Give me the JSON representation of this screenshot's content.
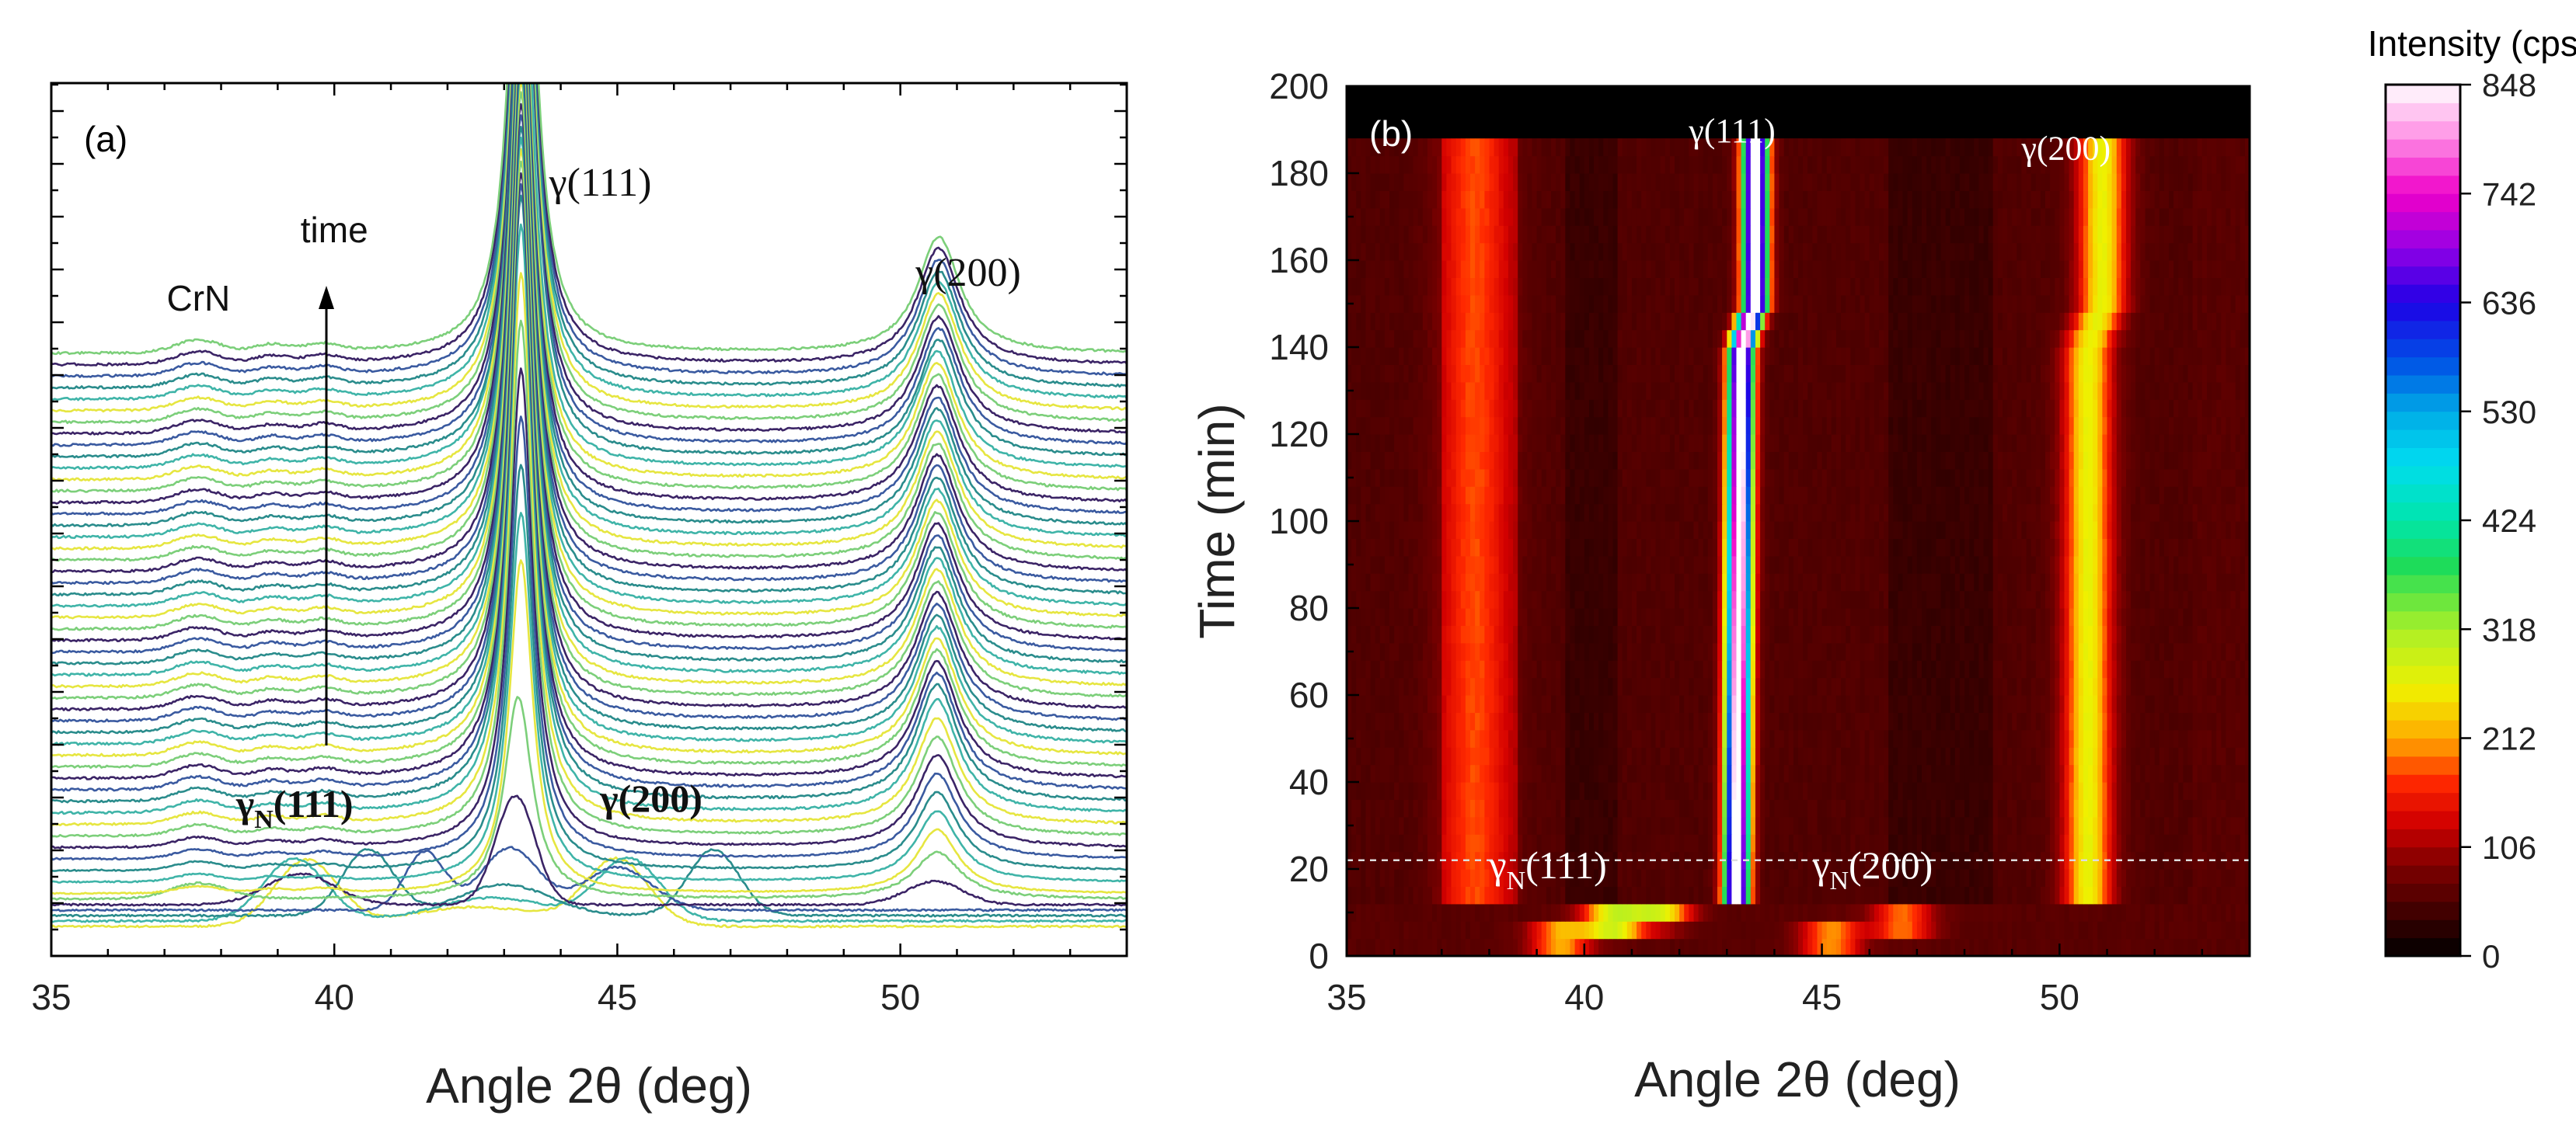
{
  "chart_data": [
    {
      "type": "line",
      "panel_label": "(a)",
      "xlabel": "Angle 2θ (deg)",
      "ylabel": "",
      "xlim": [
        35,
        54
      ],
      "xticks": [
        35,
        40,
        45,
        50
      ],
      "y_tick_labels": "none",
      "grid": false,
      "series_count": 54,
      "stack_offset_note_visible": false,
      "color_cycle": [
        "#e6e640",
        "#3fb4a8",
        "#2a8c8c",
        "#3a5aa0",
        "#3b2466",
        "#7ccf7a"
      ],
      "annotations": [
        {
          "text": "γ(111)",
          "x": 44.7,
          "label": "gamma-111"
        },
        {
          "text": "γ(200)",
          "x": 51.2,
          "label": "gamma-200"
        },
        {
          "text": "CrN",
          "x": 37.6,
          "label": "crn"
        },
        {
          "text": "time",
          "x": 40.0,
          "label": "time",
          "arrow": "up"
        },
        {
          "text": "γ",
          "sub": "N",
          "suffix": "(111)",
          "x": 39.3,
          "label": "gammaN-111"
        },
        {
          "text": "γ(200)",
          "x": 45.6,
          "label": "gamma-200-low"
        }
      ],
      "peaks_late": [
        {
          "position": 37.6,
          "relative_height": 0.05,
          "label": "CrN"
        },
        {
          "position": 38.9,
          "relative_height": 0.03
        },
        {
          "position": 43.3,
          "relative_height": 1.0,
          "label": "γ(111)"
        },
        {
          "position": 50.65,
          "relative_height": 0.2,
          "label": "γ(200)"
        }
      ],
      "peaks_early": [
        {
          "position": 39.5,
          "relative_height": 0.25,
          "label": "γN(111)"
        },
        {
          "position": 40.6,
          "relative_height": 0.3
        },
        {
          "position": 41.6,
          "relative_height": 0.25
        },
        {
          "position": 45.0,
          "relative_height": 0.25,
          "label": "γN(200)"
        },
        {
          "position": 46.7,
          "relative_height": 0.25
        }
      ]
    },
    {
      "type": "heatmap",
      "panel_label": "(b)",
      "xlabel": "Angle 2θ (deg)",
      "ylabel": "Time (min)",
      "xlim": [
        35,
        54
      ],
      "ylim": [
        0,
        200
      ],
      "xticks": [
        35,
        40,
        45,
        50
      ],
      "yticks": [
        0,
        20,
        40,
        60,
        80,
        100,
        120,
        140,
        160,
        180,
        200
      ],
      "data_extent_time_max": 188,
      "reference_line_time": 22,
      "colorbar": {
        "title": "Intensity (cps)",
        "ticks": [
          0,
          106,
          212,
          318,
          424,
          530,
          636,
          742,
          848
        ],
        "min": 0,
        "max": 848
      },
      "annotations": [
        {
          "text": "γ(111)",
          "x": 42.2,
          "y": 190
        },
        {
          "text": "γ(200)",
          "x": 49.2,
          "y": 186
        },
        {
          "text": "γ",
          "sub": "N",
          "suffix": "(111)",
          "x": 38.0,
          "y": 20
        },
        {
          "text": "γ",
          "sub": "N",
          "suffix": "(200)",
          "x": 44.8,
          "y": 20
        }
      ],
      "ridges": [
        {
          "label": "γ(111)",
          "positions": [
            [
              12,
              43.2
            ],
            [
              140,
              43.3
            ],
            [
              150,
              43.6
            ],
            [
              188,
              43.6
            ]
          ],
          "peak_intensity": 848
        },
        {
          "label": "γ(200)",
          "positions": [
            [
              12,
              50.6
            ],
            [
              140,
              50.6
            ],
            [
              150,
              50.9
            ],
            [
              188,
              50.9
            ]
          ],
          "peak_intensity": 212
        },
        {
          "label": "CrN",
          "positions": [
            [
              12,
              37.7
            ],
            [
              188,
              37.7
            ]
          ],
          "peak_intensity": 85
        }
      ],
      "early_spots": [
        {
          "x": 39.5,
          "y": 4,
          "intensity": 230
        },
        {
          "x": 40.6,
          "y": 8,
          "intensity": 330
        },
        {
          "x": 41.6,
          "y": 10,
          "intensity": 210
        },
        {
          "x": 45.2,
          "y": 4,
          "intensity": 220
        },
        {
          "x": 46.7,
          "y": 8,
          "intensity": 200
        }
      ]
    }
  ]
}
